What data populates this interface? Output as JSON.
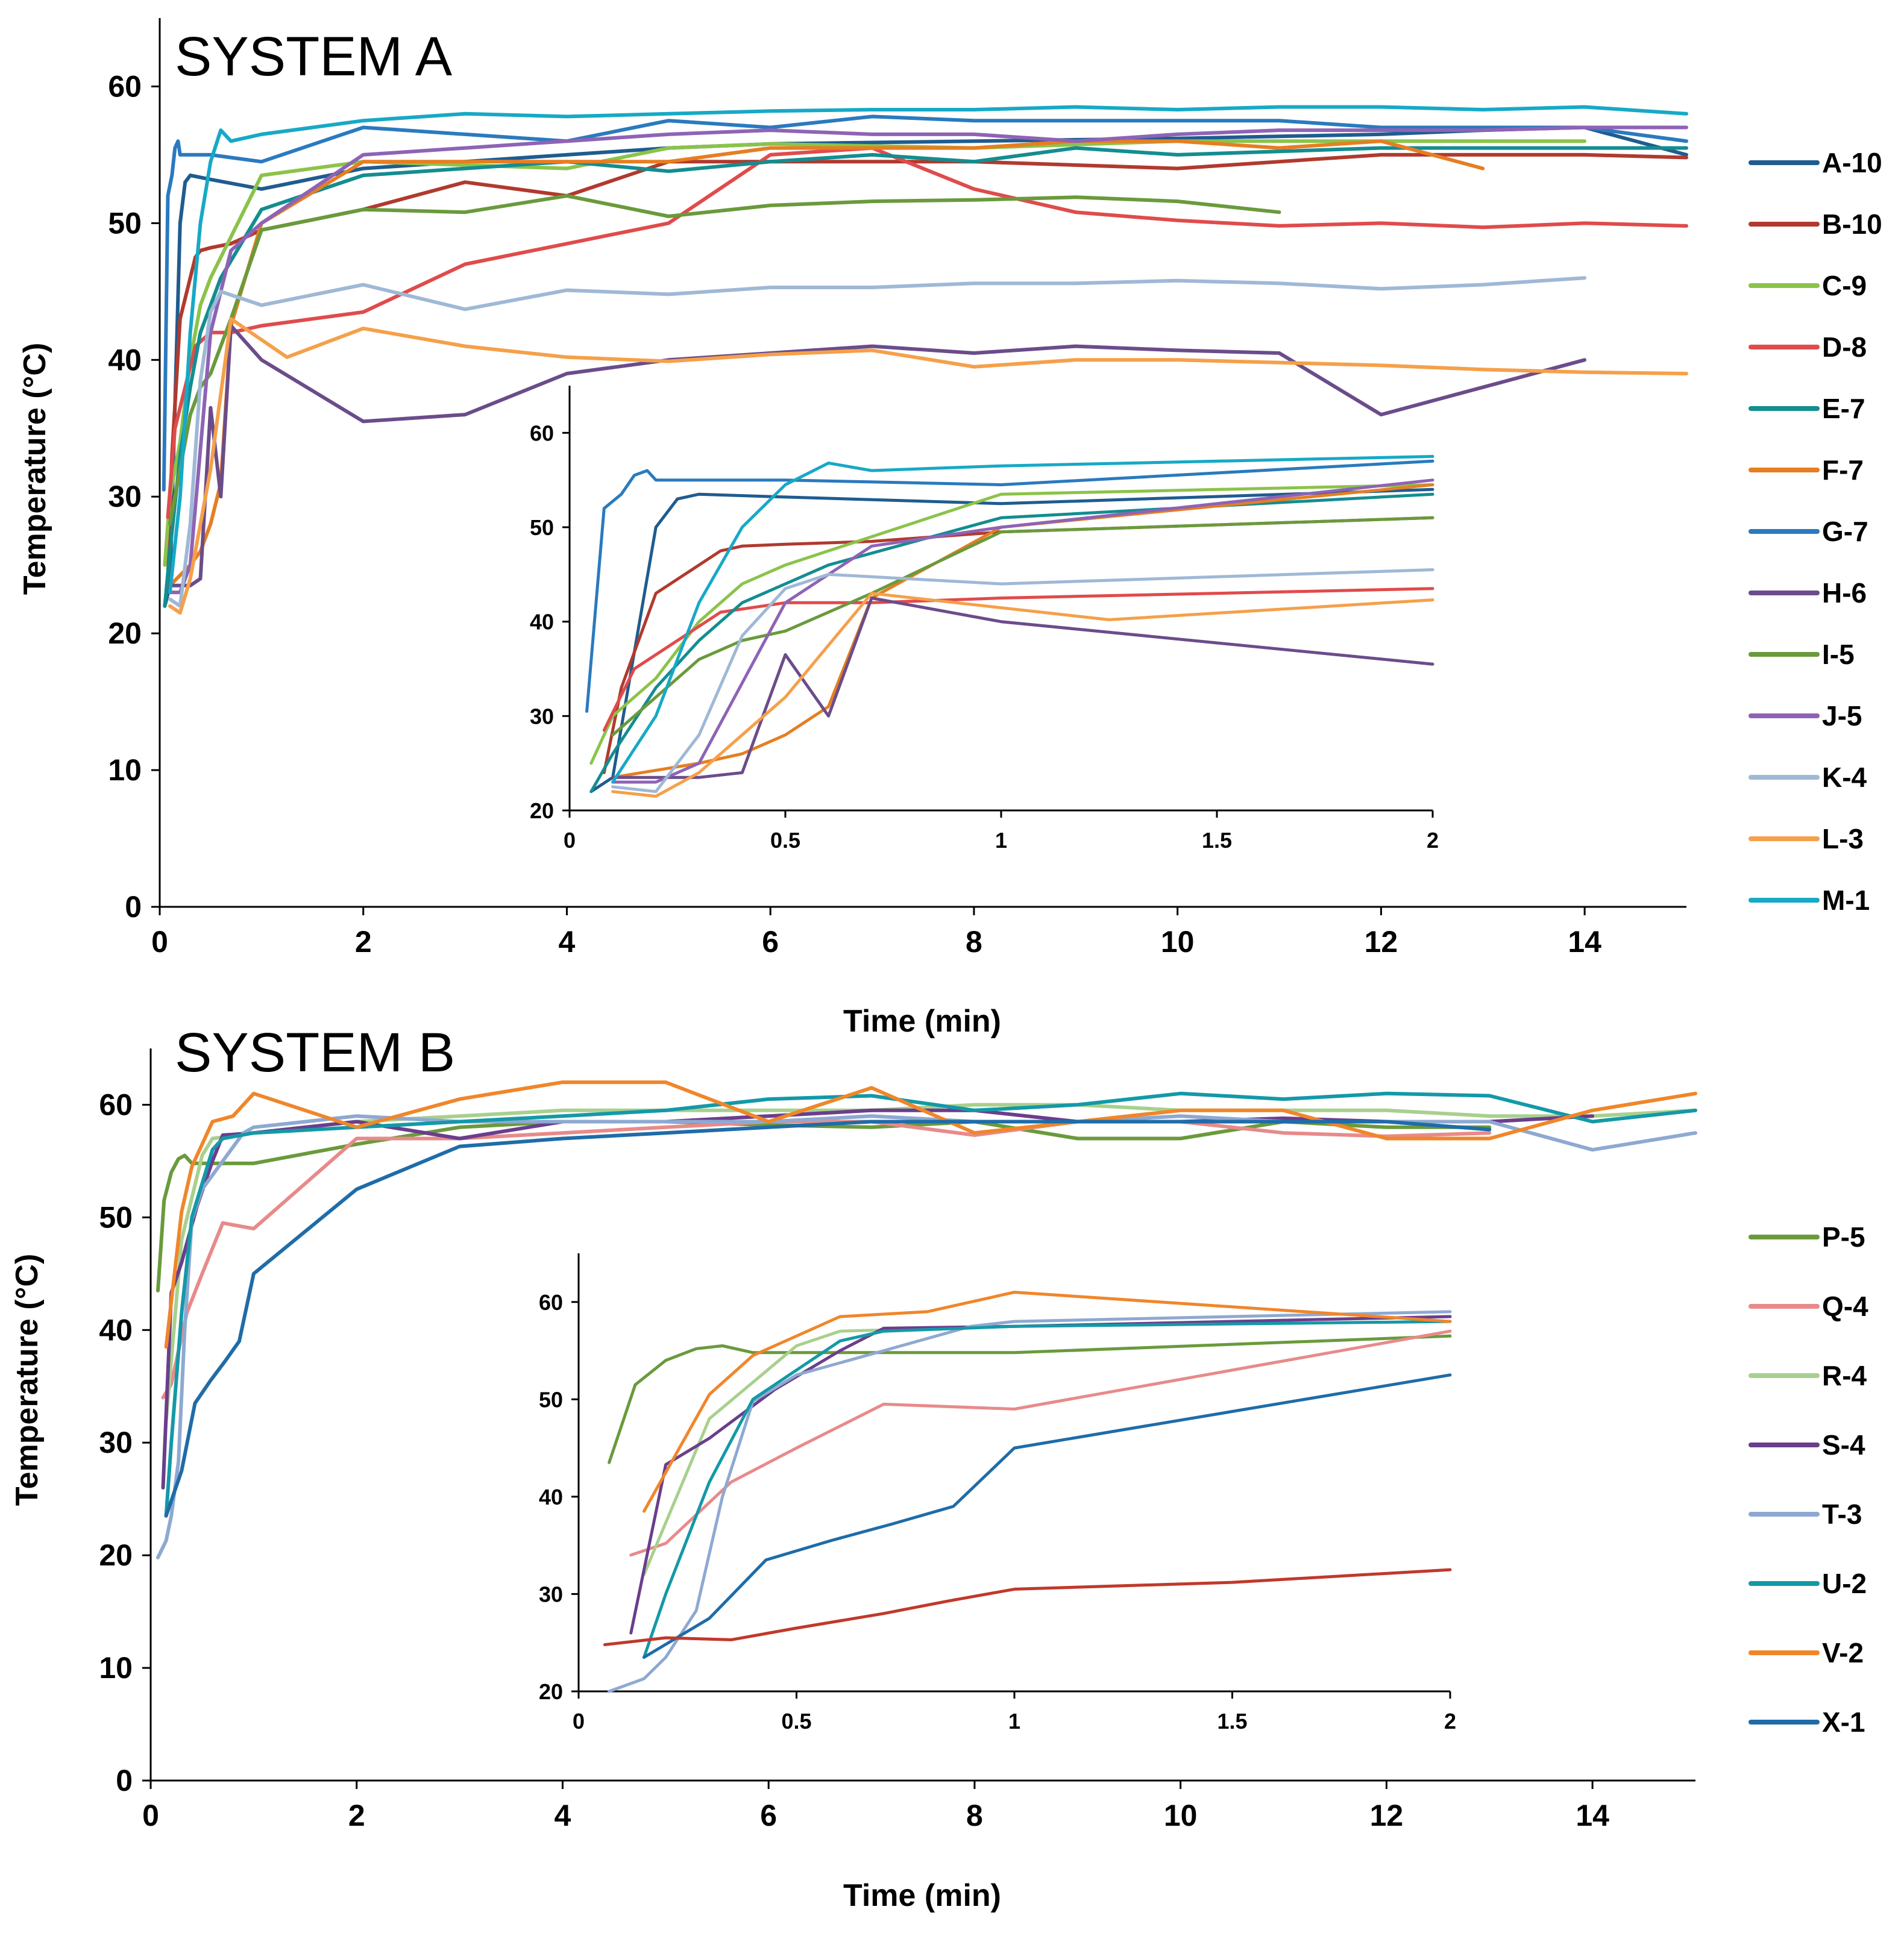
{
  "chart_data": [
    {
      "type": "line",
      "panel": "top",
      "title": "SYSTEM A",
      "xlabel": "Time (min)",
      "ylabel": "Temperature (°C)",
      "xlim": [
        0,
        15
      ],
      "ylim": [
        0,
        65
      ],
      "xticks": [
        "0",
        "2",
        "4",
        "6",
        "8",
        "10",
        "12",
        "14"
      ],
      "yticks": [
        "0",
        "10",
        "20",
        "30",
        "40",
        "50",
        "60"
      ],
      "legend": "right",
      "inset": {
        "xlim": [
          0,
          2
        ],
        "ylim": [
          20,
          65
        ],
        "xticks": [
          "0",
          "0.5",
          "1",
          "1.5",
          "2"
        ],
        "yticks": [
          "20",
          "30",
          "40",
          "50",
          "60"
        ]
      },
      "series": [
        {
          "name": "A-10",
          "color": "#1F5C8F",
          "x": [
            0.05,
            0.1,
            0.2,
            0.25,
            0.3,
            0.5,
            1,
            2,
            3,
            4,
            5,
            6,
            8,
            10,
            12,
            13,
            14,
            15
          ],
          "y": [
            22,
            23.5,
            50,
            53,
            53.5,
            53.2,
            52.5,
            54,
            54.5,
            55,
            55.5,
            55.8,
            56,
            56.2,
            56.5,
            56.8,
            57,
            55
          ]
        },
        {
          "name": "B-10",
          "color": "#B03A2E",
          "x": [
            0.08,
            0.12,
            0.2,
            0.35,
            0.4,
            0.5,
            0.7,
            1,
            2,
            3,
            4,
            5,
            6,
            8,
            10,
            12,
            14,
            15
          ],
          "y": [
            24,
            33,
            43,
            47.5,
            48,
            48.2,
            48.5,
            49.5,
            51,
            53,
            52,
            54.5,
            54.5,
            54.5,
            54,
            55,
            55,
            54.8
          ]
        },
        {
          "name": "C-9",
          "color": "#8BC34A",
          "x": [
            0.05,
            0.1,
            0.2,
            0.3,
            0.4,
            0.5,
            1,
            2,
            4,
            5,
            6,
            8,
            10,
            12,
            14
          ],
          "y": [
            25,
            30,
            34,
            40,
            44,
            46,
            53.5,
            54.5,
            54,
            55.5,
            55.8,
            55.5,
            56,
            56,
            56
          ]
        },
        {
          "name": "D-8",
          "color": "#E04B4B",
          "x": [
            0.08,
            0.15,
            0.25,
            0.35,
            0.5,
            0.7,
            1,
            2,
            3,
            4,
            5,
            6,
            7,
            8,
            9,
            10,
            11,
            12,
            13,
            14,
            15
          ],
          "y": [
            28.5,
            35,
            38,
            41,
            42,
            42,
            42.5,
            43.5,
            47,
            48.5,
            50,
            55,
            55.5,
            52.5,
            50.8,
            50.2,
            49.8,
            50,
            49.7,
            50,
            49.8
          ]
        },
        {
          "name": "E-7",
          "color": "#138D90",
          "x": [
            0.05,
            0.1,
            0.2,
            0.3,
            0.4,
            0.6,
            1,
            2,
            3,
            4,
            5,
            6,
            7,
            8,
            9,
            10,
            12,
            14,
            15
          ],
          "y": [
            22,
            26,
            33,
            38,
            42,
            46,
            51,
            53.5,
            54,
            54.5,
            53.8,
            54.5,
            55,
            54.5,
            55.5,
            55,
            55.5,
            55.5,
            55.5
          ]
        },
        {
          "name": "F-7",
          "color": "#E67E22",
          "x": [
            0.1,
            0.3,
            0.4,
            0.5,
            0.6,
            0.7,
            1,
            2,
            3,
            4,
            5,
            6,
            7,
            8,
            9,
            10,
            11,
            12,
            13
          ],
          "y": [
            23.5,
            25,
            26,
            28,
            31,
            42.5,
            50,
            54.5,
            54.5,
            54.5,
            54.5,
            55.5,
            55.5,
            55.5,
            56,
            56,
            55.5,
            56,
            54
          ]
        },
        {
          "name": "G-7",
          "color": "#2A7ABF",
          "x": [
            0.04,
            0.08,
            0.12,
            0.15,
            0.18,
            0.2,
            0.5,
            1,
            2,
            3,
            4,
            5,
            6,
            7,
            8,
            9,
            10,
            11,
            12,
            13,
            14,
            15
          ],
          "y": [
            30.5,
            52,
            53.5,
            55.5,
            56,
            55,
            55,
            54.5,
            57,
            56.5,
            56,
            57.5,
            57,
            57.8,
            57.5,
            57.5,
            57.5,
            57.5,
            57,
            57,
            57,
            56
          ]
        },
        {
          "name": "H-6",
          "color": "#6B4C8A",
          "x": [
            0.1,
            0.3,
            0.4,
            0.5,
            0.6,
            0.7,
            1,
            2,
            3,
            4,
            5,
            6,
            7,
            8,
            9,
            10,
            11,
            12,
            13,
            14
          ],
          "y": [
            23.5,
            23.5,
            24,
            36.5,
            30,
            42.5,
            40,
            35.5,
            36,
            39,
            40,
            40.5,
            41,
            40.5,
            41,
            40.7,
            40.5,
            36,
            38,
            40
          ]
        },
        {
          "name": "I-5",
          "color": "#6A9A3C",
          "x": [
            0.1,
            0.2,
            0.3,
            0.4,
            0.5,
            0.7,
            1,
            2,
            3,
            4,
            5,
            6,
            7,
            8,
            9,
            10,
            11
          ],
          "y": [
            28,
            32,
            36,
            38,
            39,
            43,
            49.5,
            51,
            50.8,
            52,
            50.5,
            51.3,
            51.6,
            51.7,
            51.9,
            51.6,
            50.8
          ]
        },
        {
          "name": "J-5",
          "color": "#8E63B5",
          "x": [
            0.1,
            0.2,
            0.3,
            0.5,
            0.7,
            1,
            2,
            3,
            4,
            5,
            6,
            7,
            8,
            9,
            10,
            11,
            12,
            13,
            14,
            15
          ],
          "y": [
            23,
            23,
            25,
            42,
            48,
            50,
            55,
            55.5,
            56,
            56.5,
            56.8,
            56.5,
            56.5,
            56,
            56.5,
            56.8,
            56.8,
            56.8,
            57,
            57
          ]
        },
        {
          "name": "K-4",
          "color": "#9FB8D6",
          "x": [
            0.1,
            0.2,
            0.3,
            0.4,
            0.5,
            0.6,
            1,
            2,
            3,
            4,
            5,
            6,
            7,
            8,
            9,
            10,
            11,
            12,
            13,
            14
          ],
          "y": [
            22.5,
            22,
            28,
            38.5,
            43.5,
            45,
            44,
            45.5,
            43.7,
            45.1,
            44.8,
            45.3,
            45.3,
            45.6,
            45.6,
            45.8,
            45.6,
            45.2,
            45.5,
            46
          ]
        },
        {
          "name": "L-3",
          "color": "#F5A04A",
          "x": [
            0.1,
            0.2,
            0.3,
            0.5,
            0.7,
            1.25,
            2,
            3,
            4,
            5,
            6,
            7,
            8,
            9,
            10,
            11,
            12,
            13,
            14,
            15
          ],
          "y": [
            22,
            21.5,
            24,
            32,
            43,
            40.2,
            42.3,
            41,
            40.2,
            39.9,
            40.4,
            40.7,
            39.5,
            40,
            40,
            39.8,
            39.6,
            39.3,
            39.1,
            39
          ]
        },
        {
          "name": "M-1",
          "color": "#17A9C6",
          "x": [
            0.1,
            0.2,
            0.3,
            0.4,
            0.5,
            0.6,
            0.7,
            1,
            2,
            3,
            4,
            5,
            6,
            7,
            8,
            9,
            10,
            11,
            12,
            13,
            14,
            15
          ],
          "y": [
            23,
            30,
            42,
            50,
            54.5,
            56.8,
            56,
            56.5,
            57.5,
            58,
            57.8,
            58,
            58.2,
            58.3,
            58.3,
            58.5,
            58.3,
            58.5,
            58.5,
            58.3,
            58.5,
            58
          ]
        }
      ]
    },
    {
      "type": "line",
      "panel": "bottom",
      "title": "SYSTEM B",
      "xlabel": "Time (min)",
      "ylabel": "Temperature (°C)",
      "xlim": [
        0,
        15
      ],
      "ylim": [
        0,
        65
      ],
      "xticks": [
        "0",
        "2",
        "4",
        "6",
        "8",
        "10",
        "12",
        "14"
      ],
      "yticks": [
        "0",
        "10",
        "20",
        "30",
        "40",
        "50",
        "60"
      ],
      "legend": "right",
      "inset": {
        "xlim": [
          0,
          2
        ],
        "ylim": [
          20,
          65
        ],
        "xticks": [
          "0",
          "0.5",
          "1",
          "1.5",
          "2"
        ],
        "yticks": [
          "20",
          "30",
          "40",
          "50",
          "60"
        ]
      },
      "series": [
        {
          "name": "P-5",
          "color": "#6A9A3C",
          "x": [
            0.07,
            0.13,
            0.2,
            0.27,
            0.33,
            0.4,
            0.5,
            1,
            2,
            3,
            4,
            5,
            6,
            7,
            8,
            9,
            10,
            11,
            12,
            13
          ],
          "y": [
            43.5,
            51.5,
            54,
            55.2,
            55.5,
            54.8,
            54.8,
            54.8,
            56.5,
            58,
            58.5,
            58.5,
            58.2,
            58,
            58.5,
            57,
            57,
            58.5,
            58,
            58
          ]
        },
        {
          "name": "Q-4",
          "color": "#E88A8A",
          "x": [
            0.12,
            0.2,
            0.35,
            0.5,
            0.7,
            1,
            2,
            3,
            4,
            5,
            6,
            7,
            8,
            9,
            10,
            11,
            12,
            13
          ],
          "y": [
            34,
            35.2,
            41.5,
            45,
            49.5,
            49,
            57,
            57,
            57.5,
            58,
            58.5,
            58.5,
            57.3,
            58.5,
            58.5,
            57.5,
            57.2,
            57.5
          ]
        },
        {
          "name": "R-4",
          "color": "#A8D08D",
          "x": [
            0.15,
            0.3,
            0.5,
            0.6,
            1,
            2,
            3,
            4,
            5,
            6,
            7,
            8,
            9,
            10,
            11,
            12,
            13,
            14,
            15
          ],
          "y": [
            32,
            48,
            55.5,
            57,
            57.5,
            58.5,
            59,
            59.5,
            59.5,
            59.5,
            59.5,
            60,
            60,
            59.5,
            59.5,
            59.5,
            59,
            59,
            59.5
          ]
        },
        {
          "name": "S-4",
          "color": "#6B3E8C",
          "x": [
            0.12,
            0.2,
            0.3,
            0.45,
            0.6,
            0.7,
            1,
            2,
            3,
            4,
            5,
            6,
            7,
            8,
            9,
            10,
            11,
            12,
            13,
            14
          ],
          "y": [
            26,
            43.3,
            46,
            51,
            55,
            57.3,
            57.5,
            58.5,
            57,
            58.5,
            58.5,
            59,
            59.5,
            59.5,
            58.5,
            58.5,
            58.8,
            58.5,
            58.5,
            59
          ]
        },
        {
          "name": "T-3",
          "color": "#8EA9D1",
          "x": [
            0.07,
            0.15,
            0.2,
            0.27,
            0.33,
            0.4,
            0.5,
            0.7,
            0.9,
            1,
            2,
            3,
            4,
            5,
            6,
            7,
            8,
            9,
            10,
            11,
            12,
            13,
            14,
            15
          ],
          "y": [
            19.8,
            21.3,
            23.5,
            28.3,
            40,
            49.8,
            52.5,
            55,
            57.5,
            58,
            59,
            58.5,
            58.5,
            58.5,
            58.5,
            59,
            58.5,
            58.5,
            59,
            58.5,
            58.5,
            58.5,
            56,
            57.5
          ]
        },
        {
          "name": "U-2",
          "color": "#1399A8",
          "x": [
            0.15,
            0.2,
            0.3,
            0.4,
            0.6,
            0.7,
            1,
            2,
            3,
            4,
            5,
            6,
            7,
            8,
            9,
            10,
            11,
            12,
            13,
            14,
            15
          ],
          "y": [
            23.5,
            30,
            41.5,
            50,
            56,
            57,
            57.5,
            58,
            58.5,
            59,
            59.5,
            60.5,
            60.8,
            59.5,
            60,
            61,
            60.5,
            61,
            60.8,
            58.5,
            59.5
          ]
        },
        {
          "name": "V-2",
          "color": "#F0862A",
          "x": [
            0.15,
            0.3,
            0.4,
            0.6,
            0.8,
            1,
            2,
            3,
            4,
            5,
            6,
            7,
            8,
            9,
            10,
            11,
            12,
            13,
            14,
            15
          ],
          "y": [
            38.5,
            50.5,
            54.5,
            58.5,
            59,
            61,
            58,
            60.5,
            62,
            62,
            58.5,
            61.5,
            57.5,
            58.5,
            59.5,
            59.5,
            57,
            57,
            59.5,
            61
          ]
        },
        {
          "name": "X-1",
          "color": "#1F6CA8",
          "x": [
            0.15,
            0.3,
            0.43,
            0.58,
            0.72,
            0.86,
            1,
            2,
            3,
            4,
            5,
            6,
            7,
            8,
            9,
            10,
            11,
            12,
            13
          ],
          "y": [
            23.5,
            27.5,
            33.5,
            35.5,
            37.2,
            39,
            45,
            52.5,
            56.3,
            57,
            57.5,
            58,
            58.5,
            58.5,
            58.5,
            58.5,
            58.5,
            58.5,
            57.8
          ]
        },
        {
          "name": "",
          "color": "#C0392B",
          "inset_only": true,
          "x": [
            0.06,
            0.2,
            0.35,
            0.5,
            0.7,
            0.85,
            1,
            1.5,
            2
          ],
          "y": [
            24.8,
            25.5,
            25.3,
            26.5,
            28,
            29.3,
            30.5,
            31.2,
            32.5
          ]
        }
      ]
    }
  ]
}
